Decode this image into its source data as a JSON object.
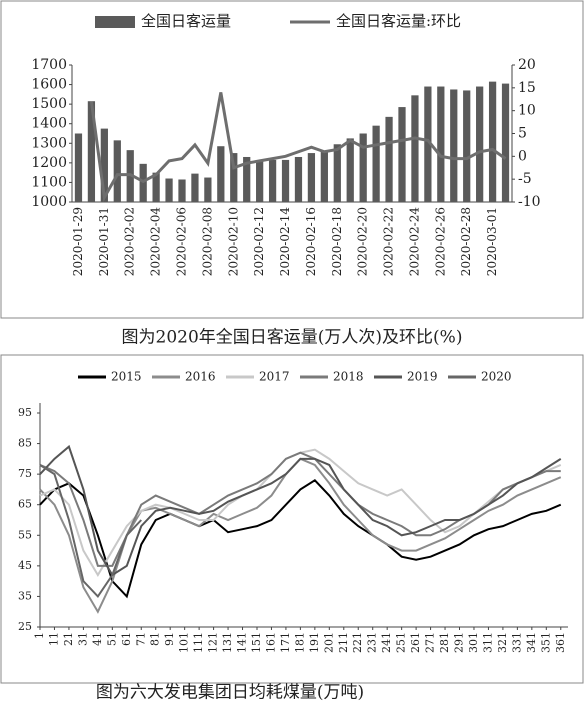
{
  "chart_data": [
    {
      "type": "combo",
      "categories": [
        "2020-01-29",
        null,
        "2020-01-31",
        null,
        "2020-02-02",
        null,
        "2020-02-04",
        null,
        "2020-02-06",
        null,
        "2020-02-08",
        null,
        "2020-02-10",
        null,
        "2020-02-12",
        null,
        "2020-02-14",
        null,
        "2020-02-16",
        null,
        "2020-02-18",
        null,
        "2020-02-20",
        null,
        "2020-02-22",
        null,
        "2020-02-24",
        null,
        "2020-02-26",
        null,
        "2020-02-28",
        null,
        "2020-03-01",
        null
      ],
      "series": [
        {
          "name": "全国日客运量",
          "type": "bar",
          "color": "#5a5a5a",
          "values": [
            1350,
            1515,
            1375,
            1315,
            1265,
            1195,
            1150,
            1120,
            1115,
            1145,
            1125,
            1285,
            1250,
            1230,
            1210,
            1215,
            1215,
            1230,
            1250,
            1260,
            1295,
            1325,
            1350,
            1390,
            1435,
            1485,
            1545,
            1590,
            1590,
            1575,
            1570,
            1590,
            1615,
            1605
          ]
        },
        {
          "name": "全国日客运量:环比",
          "type": "line",
          "axis": "y2",
          "color": "#6e6e6e",
          "values": [
            null,
            12,
            -9,
            -4,
            -4,
            -5.5,
            -4,
            -1,
            -0.5,
            2.5,
            -1.5,
            14,
            -2.5,
            -1.5,
            -1,
            -0.5,
            0,
            1,
            2,
            1,
            1.5,
            3.5,
            2,
            2.5,
            3,
            3.5,
            4,
            3.5,
            0,
            -0.5,
            -0.5,
            1,
            1.5,
            -0.5
          ]
        }
      ],
      "ylim": [
        1000,
        1700
      ],
      "yticks": [
        1000,
        1100,
        1200,
        1300,
        1400,
        1500,
        1600,
        1700
      ],
      "y2lim": [
        -10,
        20
      ],
      "y2ticks": [
        -10,
        -5,
        0,
        5,
        10,
        15,
        20
      ],
      "grid": false,
      "caption": "图为2020年全国日客运量(万人次)及环比(%)"
    },
    {
      "type": "line",
      "x": [
        1,
        11,
        21,
        31,
        41,
        51,
        61,
        71,
        81,
        91,
        101,
        111,
        121,
        131,
        141,
        151,
        161,
        171,
        181,
        191,
        201,
        211,
        221,
        231,
        241,
        251,
        261,
        271,
        281,
        291,
        301,
        311,
        321,
        331,
        341,
        351,
        361
      ],
      "series": [
        {
          "name": "2015",
          "color": "#000000",
          "values": [
            65,
            70,
            72,
            68,
            55,
            40,
            35,
            52,
            60,
            62,
            60,
            58,
            60,
            56,
            57,
            58,
            60,
            65,
            70,
            73,
            68,
            62,
            58,
            55,
            52,
            48,
            47,
            48,
            50,
            52,
            55,
            57,
            58,
            60,
            62,
            63,
            65
          ]
        },
        {
          "name": "2016",
          "color": "#8c8c8c",
          "values": [
            70,
            65,
            55,
            38,
            30,
            40,
            55,
            63,
            64,
            62,
            60,
            58,
            62,
            60,
            62,
            64,
            68,
            75,
            80,
            78,
            72,
            65,
            60,
            55,
            52,
            50,
            50,
            52,
            54,
            57,
            60,
            63,
            65,
            68,
            70,
            72,
            74
          ]
        },
        {
          "name": "2017",
          "color": "#c8c8c8",
          "values": [
            68,
            70,
            65,
            50,
            42,
            50,
            58,
            63,
            65,
            64,
            62,
            60,
            60,
            65,
            68,
            70,
            75,
            80,
            82,
            83,
            80,
            76,
            72,
            70,
            68,
            70,
            65,
            60,
            56,
            58,
            62,
            66,
            70,
            72,
            74,
            76,
            78
          ]
        },
        {
          "name": "2018",
          "color": "#7a7a7a",
          "values": [
            78,
            76,
            72,
            60,
            45,
            45,
            55,
            65,
            68,
            66,
            64,
            62,
            65,
            68,
            70,
            72,
            75,
            80,
            82,
            80,
            75,
            70,
            65,
            62,
            60,
            58,
            55,
            55,
            57,
            60,
            62,
            65,
            70,
            72,
            74,
            76,
            76
          ]
        },
        {
          "name": "2019",
          "color": "#555555",
          "values": [
            75,
            80,
            84,
            70,
            50,
            42,
            45,
            58,
            63,
            64,
            63,
            62,
            63,
            66,
            68,
            70,
            72,
            75,
            80,
            80,
            78,
            70,
            65,
            60,
            58,
            55,
            56,
            58,
            60,
            60,
            62,
            65,
            68,
            72,
            74,
            77,
            80
          ]
        },
        {
          "name": "2020",
          "color": "#666666",
          "values": [
            78,
            75,
            60,
            40,
            35,
            42,
            55,
            60,
            null,
            null,
            null,
            null,
            null,
            null,
            null,
            null,
            null,
            null,
            null,
            null,
            null,
            null,
            null,
            null,
            null,
            null,
            null,
            null,
            null,
            null,
            null,
            null,
            null,
            null,
            null,
            null,
            null
          ]
        }
      ],
      "xlim": [
        1,
        366
      ],
      "xticks": [
        1,
        11,
        21,
        31,
        41,
        51,
        61,
        71,
        81,
        91,
        101,
        111,
        121,
        131,
        141,
        151,
        161,
        171,
        181,
        191,
        201,
        211,
        221,
        231,
        241,
        251,
        261,
        271,
        281,
        291,
        301,
        311,
        321,
        331,
        341,
        351,
        361
      ],
      "ylim": [
        25,
        95
      ],
      "yticks": [
        25,
        35,
        45,
        55,
        65,
        75,
        85,
        95
      ],
      "grid": false,
      "caption": "图为六大发电集团日均耗煤量(万吨)"
    }
  ]
}
